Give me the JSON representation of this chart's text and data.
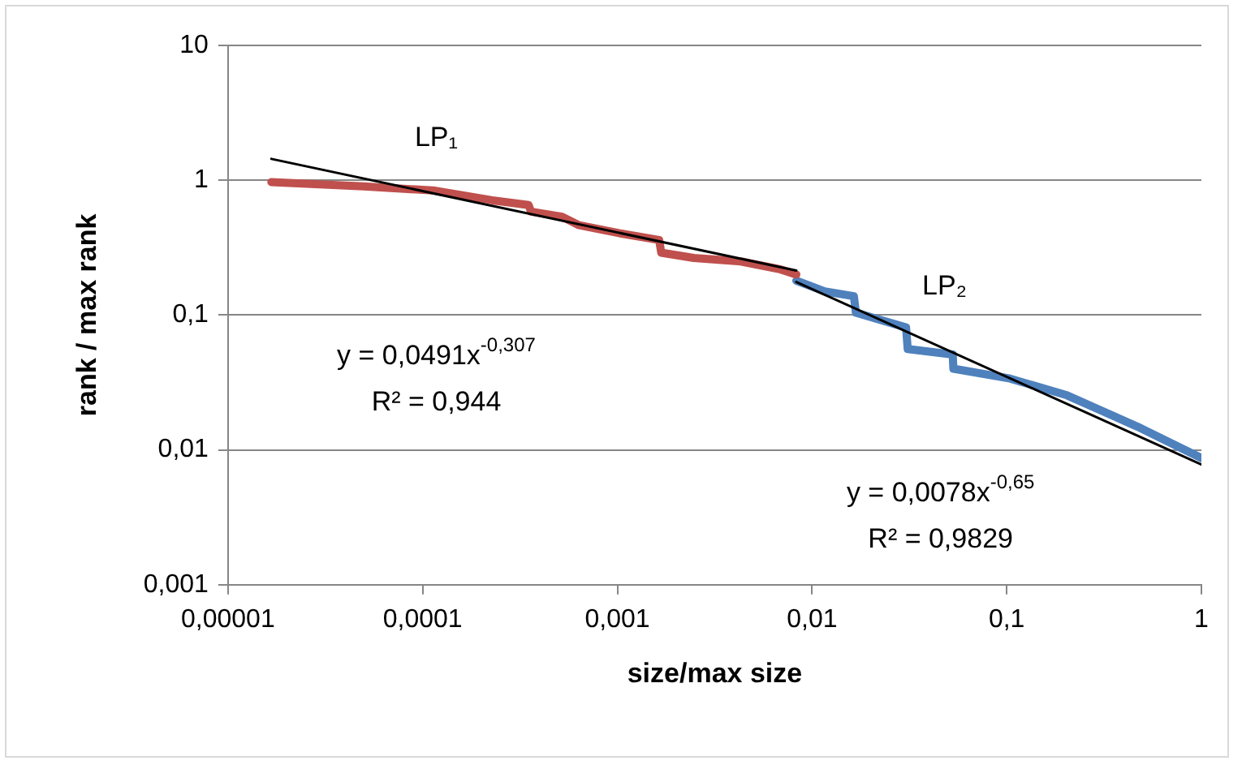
{
  "chart_data": {
    "type": "line",
    "xlabel": "size/max size",
    "ylabel": "rank / max rank",
    "log": "xy",
    "grid": "y",
    "marker": "none",
    "line_style": "solid",
    "xlim": [
      1e-05,
      1
    ],
    "ylim": [
      0.001,
      10
    ],
    "xticks": [
      {
        "value": 1e-05,
        "label": "0,00001"
      },
      {
        "value": 0.0001,
        "label": "0,0001"
      },
      {
        "value": 0.001,
        "label": "0,001"
      },
      {
        "value": 0.01,
        "label": "0,01"
      },
      {
        "value": 0.1,
        "label": "0,1"
      },
      1
    ],
    "yticks": [
      {
        "value": 0.001,
        "label": "0,001"
      },
      {
        "value": 0.01,
        "label": "0,01"
      },
      {
        "value": 0.1,
        "label": "0,1"
      },
      1,
      10
    ],
    "series": [
      {
        "color": "#c0504d",
        "x": [
          1.67e-05,
          4.97e-05,
          0.000113,
          0.000228,
          0.00035,
          0.00036,
          0.00052,
          0.00063,
          0.00102,
          0.00164,
          0.00168,
          0.00247,
          0.0043,
          0.0069,
          0.0083
        ],
        "values": [
          0.97,
          0.9,
          0.84,
          0.71,
          0.655,
          0.585,
          0.537,
          0.466,
          0.405,
          0.36,
          0.29,
          0.265,
          0.25,
          0.218,
          0.2
        ]
      },
      {
        "color": "#4f81bd",
        "x": [
          0.0083,
          0.0116,
          0.0164,
          0.0168,
          0.0304,
          0.031,
          0.0528,
          0.0532,
          0.104,
          0.204,
          0.468,
          1
        ],
        "values": [
          0.18,
          0.15,
          0.138,
          0.104,
          0.081,
          0.056,
          0.051,
          0.04,
          0.0338,
          0.0254,
          0.0149,
          0.0087
        ]
      },
      {
        "color": "#000000",
        "x": [
          1.67e-05,
          0.0083
        ],
        "values": [
          1.44,
          0.214
        ]
      },
      {
        "color": "#000000",
        "x": [
          0.0083,
          1
        ],
        "values": [
          0.176,
          0.0078
        ]
      }
    ],
    "annotations": [
      "LP₁",
      "LP₂",
      "y = 0,0491x$^{-0,307}$",
      "R² = 0,944",
      "y = 0,0078x$^{-0,65}$",
      "R² = 0,9829"
    ]
  }
}
